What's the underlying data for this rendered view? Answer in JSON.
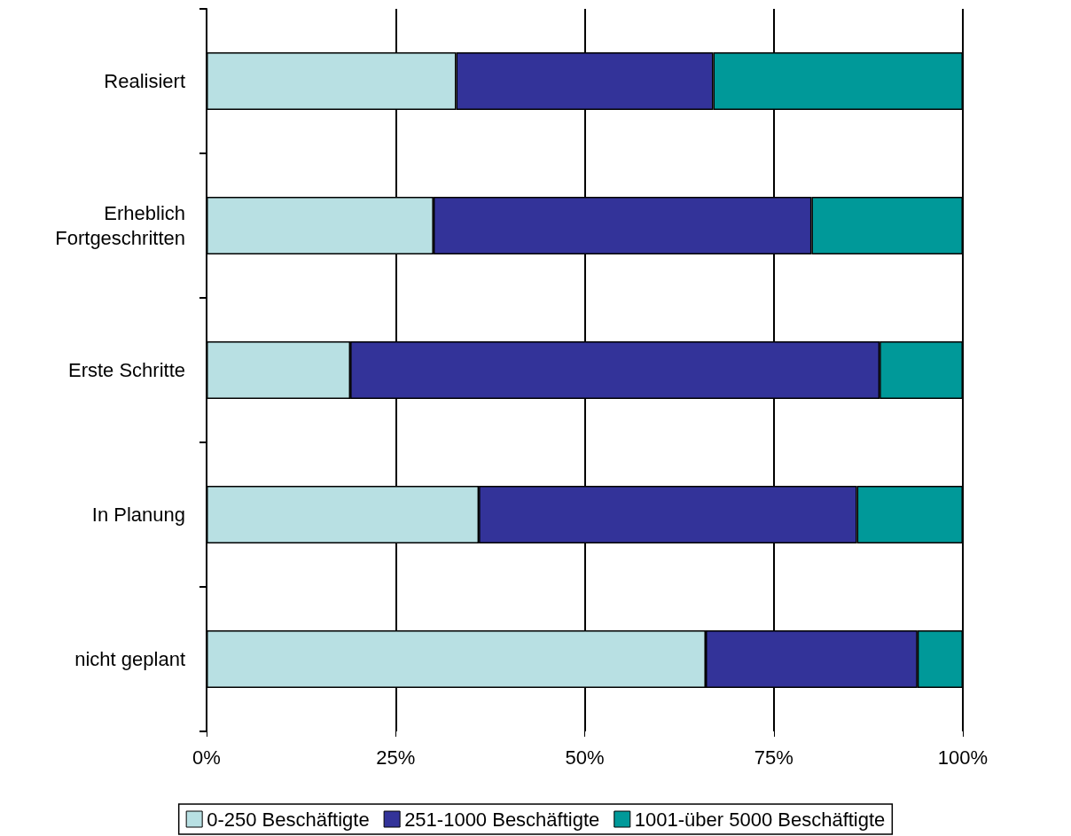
{
  "chart_data": {
    "type": "bar",
    "orientation": "horizontal",
    "stacked": true,
    "categories": [
      "Realisiert",
      "Erheblich\nFortgeschritten",
      "Erste Schritte",
      "In Planung",
      "nicht geplant"
    ],
    "series": [
      {
        "name": "0-250 Beschäftigte",
        "color": "#b8e0e3",
        "values": [
          33,
          30,
          19,
          36,
          66
        ]
      },
      {
        "name": "251-1000 Beschäftigte",
        "color": "#333399",
        "values": [
          34,
          50,
          70,
          50,
          28
        ]
      },
      {
        "name": "1001-über 5000 Beschäftigte",
        "color": "#009999",
        "values": [
          33,
          20,
          11,
          14,
          6
        ]
      }
    ],
    "xlim": [
      0,
      100
    ],
    "xticks": [
      {
        "value": 0,
        "label": "0%"
      },
      {
        "value": 25,
        "label": "25%"
      },
      {
        "value": 50,
        "label": "50%"
      },
      {
        "value": 75,
        "label": "75%"
      },
      {
        "value": 100,
        "label": "100%"
      }
    ],
    "grid": "x",
    "legend": "bottom"
  }
}
